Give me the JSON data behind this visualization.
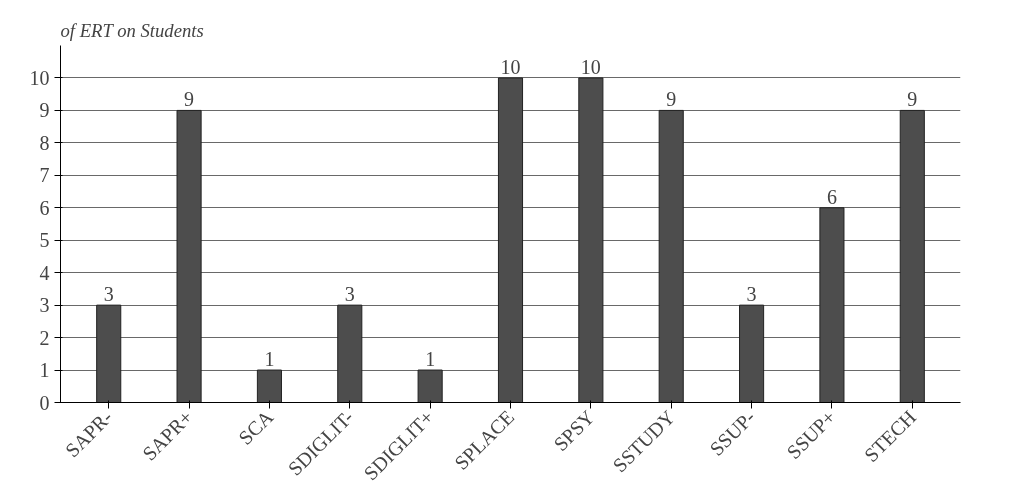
{
  "chart_data": {
    "type": "bar",
    "title": "of ERT on Students",
    "categories": [
      "SAPR-",
      "SAPR+",
      "SCA",
      "SDIGLIT-",
      "SDIGLIT+",
      "SPLACE",
      "SPSY",
      "SSTUDY",
      "SSUP-",
      "SSUP+",
      "STECH"
    ],
    "values": [
      3,
      9,
      1,
      3,
      1,
      10,
      10,
      9,
      3,
      6,
      9
    ],
    "color": "#4d4d4d",
    "ylim": [
      0,
      10
    ],
    "yticks": [
      0,
      1,
      2,
      3,
      4,
      5,
      6,
      7,
      8,
      9,
      10
    ],
    "grid": "y",
    "data_labels": true
  }
}
